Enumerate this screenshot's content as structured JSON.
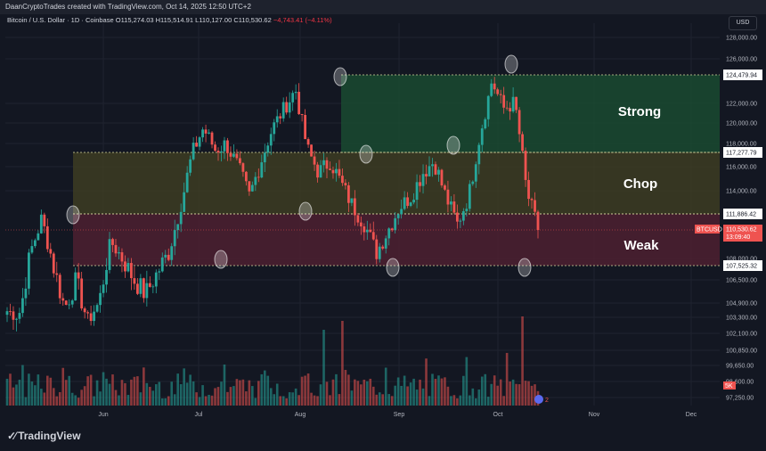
{
  "header": {
    "title": "DaanCryptoTrades created with TradingView.com, Oct 14, 2025 12:50 UTC+2"
  },
  "legend": {
    "symbol": "Bitcoin / U.S. Dollar · 1D · Coinbase",
    "ohlc": "O115,274.03 H115,514.91 L110,127.00 C110,530.62",
    "change": "−4,743.41 (−4.11%)"
  },
  "currency_button": "USD",
  "watermark": "TradingView",
  "colors": {
    "up": "#26a69a",
    "down": "#ef5350",
    "strong": "#1b4332",
    "chop": "#3a3a20",
    "weak": "#4a1f2b"
  },
  "chart_data": {
    "type": "candlestick",
    "symbol": "BTCUSD",
    "x_labels": [
      "Jun",
      "Jul",
      "Aug",
      "Sep",
      "Oct",
      "Nov",
      "Dec"
    ],
    "y_ticks": [
      97250,
      98600,
      99650,
      100850,
      102100,
      103300,
      104900,
      106500,
      108000,
      114000,
      116000,
      118000,
      120000,
      122000,
      126000,
      128000
    ],
    "ylim": [
      97250,
      128000
    ],
    "zones": [
      {
        "label": "Strong",
        "low": 117277.79,
        "high": 124479.94
      },
      {
        "label": "Chop",
        "low": 111886.42,
        "high": 117277.79
      },
      {
        "label": "Weak",
        "low": 107525.32,
        "high": 111886.42
      }
    ],
    "level_labels": [
      "124,479.94",
      "117,277.79",
      "111,886.42",
      "107,525.32"
    ],
    "current_price": {
      "label": "BTCUSD",
      "value": "110,530.62",
      "countdown": "13:09:40"
    },
    "badges": [
      "5K",
      "2"
    ],
    "close_path": [
      104000,
      103500,
      108500,
      111500,
      107500,
      104500,
      106500,
      103000,
      105000,
      109500,
      108000,
      106500,
      105500,
      107000,
      108500,
      112500,
      117000,
      119500,
      117500,
      118000,
      116000,
      113500,
      116500,
      119500,
      121500,
      123200,
      117500,
      115500,
      116500,
      114500,
      112500,
      111000,
      108500,
      110500,
      112500,
      113500,
      115500,
      116500,
      113500,
      111000,
      113500,
      119000,
      124000,
      121500,
      122000,
      114000,
      110530
    ]
  }
}
